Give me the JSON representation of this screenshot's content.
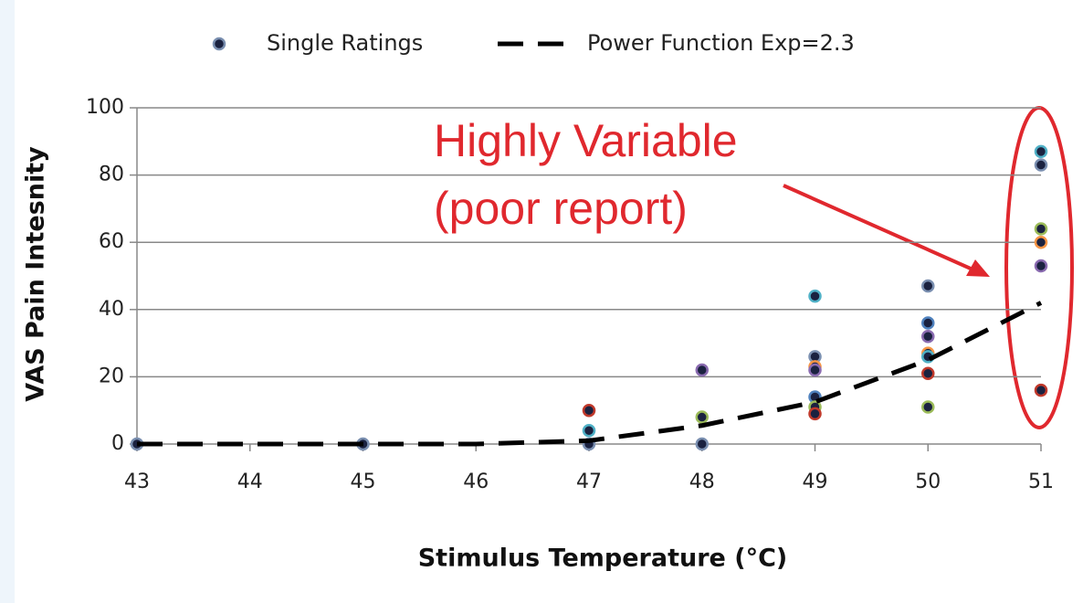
{
  "chart_data": {
    "type": "scatter",
    "xlabel": "Stimulus Temperature (°C)",
    "ylabel": "VAS Pain Intesnity",
    "xlim": [
      43,
      51
    ],
    "xticks": [
      43,
      44,
      45,
      46,
      47,
      48,
      49,
      50,
      51
    ],
    "ylim": [
      0,
      100
    ],
    "yticks": [
      0,
      20,
      40,
      60,
      80,
      100
    ],
    "grid": true,
    "legend": "top",
    "annotations": [
      "Highly Variable",
      "(poor report)"
    ],
    "series": [
      {
        "name": "Single Ratings",
        "type": "scatter",
        "color": "#1b2240",
        "x": [
          43,
          45,
          47,
          47,
          47,
          48,
          48,
          48,
          49,
          49,
          49,
          49,
          49,
          49,
          49,
          50,
          50,
          50,
          50,
          50,
          50,
          50,
          51,
          51,
          51,
          51,
          51,
          51
        ],
        "values": [
          0,
          0,
          10,
          4,
          0,
          22,
          8,
          0,
          44,
          26,
          23,
          22,
          14,
          11,
          9,
          47,
          36,
          32,
          27,
          26,
          21,
          11,
          87,
          83,
          64,
          60,
          53,
          16
        ],
        "edgecolors": [
          "#7a8fb0",
          "#7a8fb0",
          "#c0392b",
          "#4fb0c6",
          "#7a8fb0",
          "#8a6bb0",
          "#9bbb59",
          "#7a8fb0",
          "#4fb0c6",
          "#7a8fb0",
          "#f79646",
          "#8a6bb0",
          "#4f81bd",
          "#9bbb59",
          "#c0392b",
          "#7a8fb0",
          "#4f81bd",
          "#8a6bb0",
          "#f79646",
          "#4fb0c6",
          "#c0392b",
          "#9bbb59",
          "#4fb0c6",
          "#7a8fb0",
          "#9bbb59",
          "#f79646",
          "#8a6bb0",
          "#c0392b"
        ]
      },
      {
        "name": "Power Function Exp=2.3",
        "type": "line",
        "color": "#000000",
        "linestyle": "dashed",
        "x": [
          43,
          44,
          45,
          46,
          47,
          48,
          49,
          50,
          51
        ],
        "values": [
          0,
          0,
          0,
          0,
          1,
          5.5,
          12.5,
          25,
          42
        ]
      }
    ]
  }
}
